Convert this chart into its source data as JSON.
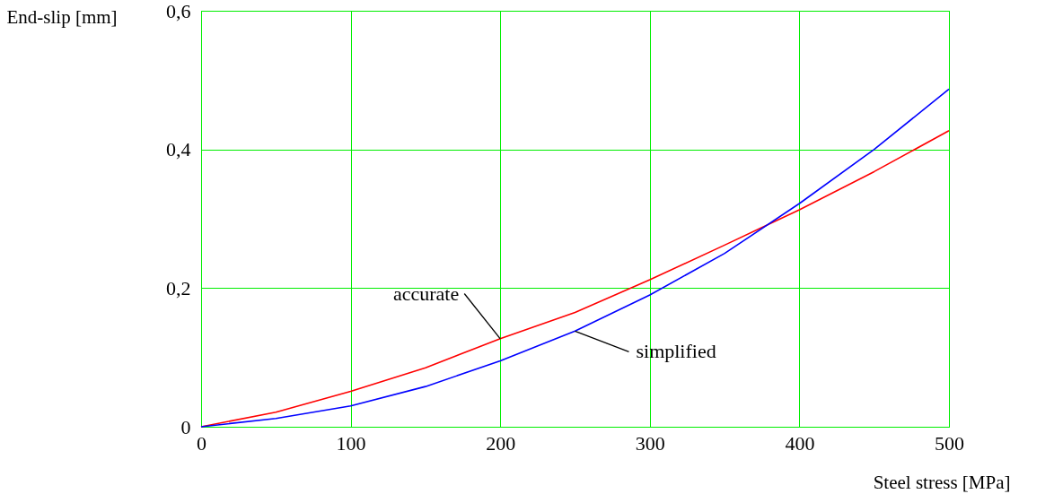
{
  "chart_data": {
    "type": "line",
    "xlabel": "Steel stress [MPa]",
    "ylabel": "End-slip [mm]",
    "x": [
      0,
      50,
      100,
      150,
      200,
      250,
      300,
      350,
      400,
      450,
      500
    ],
    "series": [
      {
        "name": "accurate",
        "color": "#ff0000",
        "values": [
          0,
          0.021,
          0.051,
          0.085,
          0.127,
          0.165,
          0.212,
          0.262,
          0.313,
          0.368,
          0.427
        ]
      },
      {
        "name": "simplified",
        "color": "#0000ff",
        "values": [
          0,
          0.012,
          0.03,
          0.058,
          0.095,
          0.138,
          0.19,
          0.25,
          0.322,
          0.4,
          0.487
        ]
      }
    ],
    "xlim": [
      0,
      500
    ],
    "xticks": [
      0,
      100,
      200,
      300,
      400,
      500
    ],
    "ylim": [
      0,
      0.6
    ],
    "yticks": [
      0,
      {
        "value": 0.2,
        "label": "0,2"
      },
      {
        "value": 0.4,
        "label": "0,4"
      },
      {
        "value": 0.6,
        "label": "0,6"
      }
    ],
    "grid": true
  }
}
